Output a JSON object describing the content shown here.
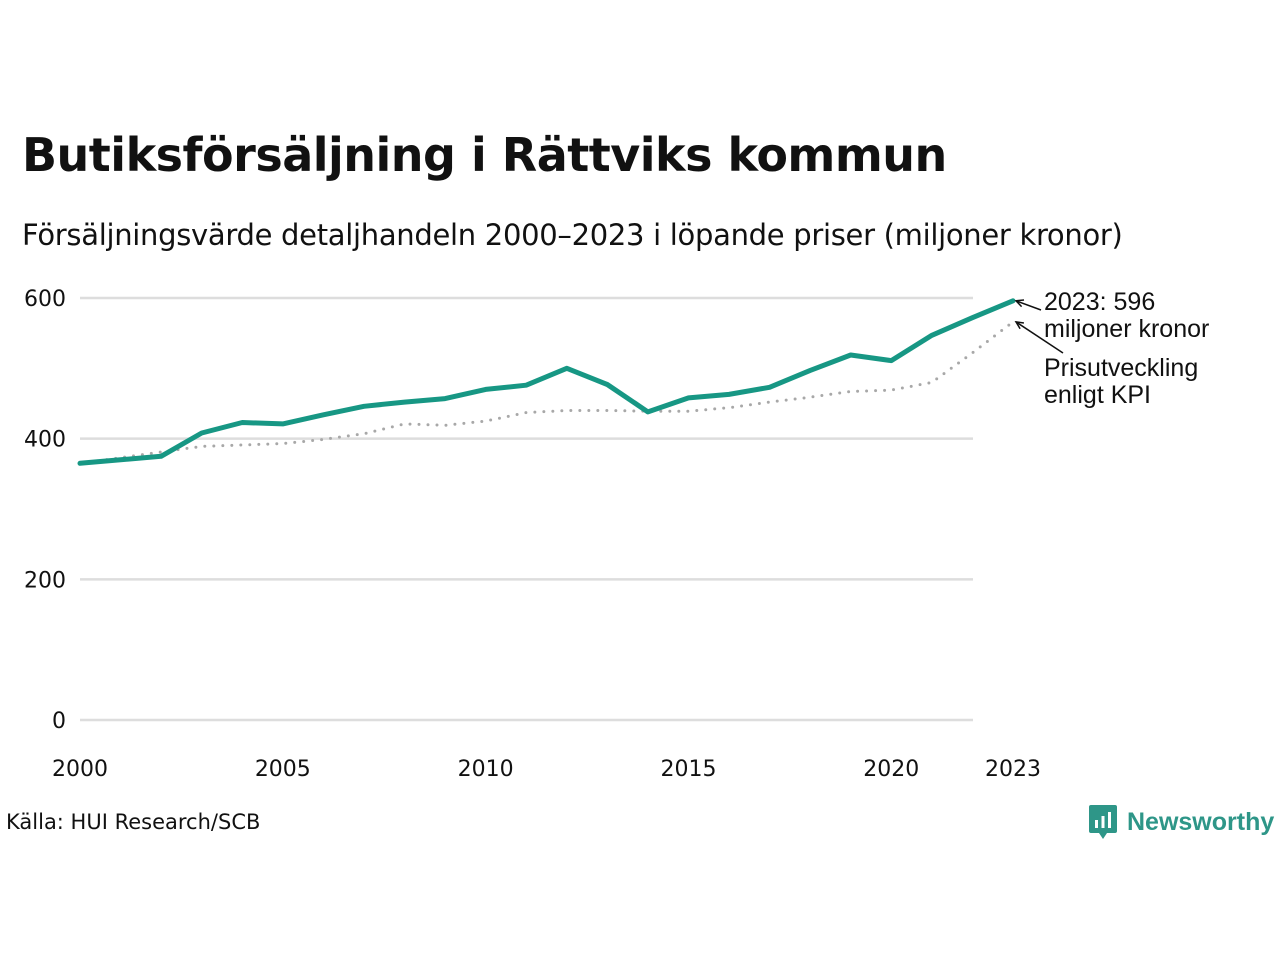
{
  "header": {
    "title": "Butiksförsäljning i Rättviks kommun",
    "subtitle": "Försäljningsvärde detaljhandeln 2000–2023 i löpande priser (miljoner kronor)"
  },
  "footer": {
    "source": "Källa: HUI Research/SCB",
    "brand": "Newsworthy"
  },
  "colors": {
    "sales_line": "#179784",
    "kpi_line": "#a8a8a8",
    "gridline": "#dddddd",
    "text": "#111111",
    "brand": "#2e9688"
  },
  "chart_data": {
    "type": "line",
    "title": "Butiksförsäljning i Rättviks kommun",
    "subtitle": "Försäljningsvärde detaljhandeln 2000–2023 i löpande priser (miljoner kronor)",
    "xlabel": "",
    "ylabel": "",
    "ylim": [
      0,
      600
    ],
    "xlim": [
      2000,
      2023
    ],
    "yticks": [
      "0",
      "200",
      "400",
      "600"
    ],
    "xticks": [
      "2000",
      "2005",
      "2010",
      "2015",
      "2020",
      "2023"
    ],
    "grid": "horizontal",
    "x": [
      2000,
      2001,
      2002,
      2003,
      2004,
      2005,
      2006,
      2007,
      2008,
      2009,
      2010,
      2011,
      2012,
      2013,
      2014,
      2015,
      2016,
      2017,
      2018,
      2019,
      2020,
      2021,
      2022,
      2023
    ],
    "series": [
      {
        "name": "Försäljningsvärde",
        "style": "solid",
        "values": [
          365,
          370,
          375,
          408,
          423,
          421,
          434,
          446,
          452,
          457,
          470,
          476,
          500,
          477,
          438,
          458,
          463,
          473,
          497,
          519,
          511,
          547,
          572,
          596
        ]
      },
      {
        "name": "Prisutveckling enligt KPI",
        "style": "dotted",
        "values": [
          365,
          373,
          381,
          389,
          391,
          393,
          399,
          407,
          421,
          419,
          425,
          437,
          440,
          440,
          439,
          439,
          444,
          452,
          459,
          467,
          469,
          480,
          522,
          566
        ]
      }
    ],
    "annotations": [
      {
        "series": "Försäljningsvärde",
        "year": 2023,
        "lines": [
          "2023: 596",
          "miljoner kronor"
        ]
      },
      {
        "series": "Prisutveckling enligt KPI",
        "year": 2023,
        "lines": [
          "Prisutveckling",
          "enligt KPI"
        ]
      }
    ]
  }
}
